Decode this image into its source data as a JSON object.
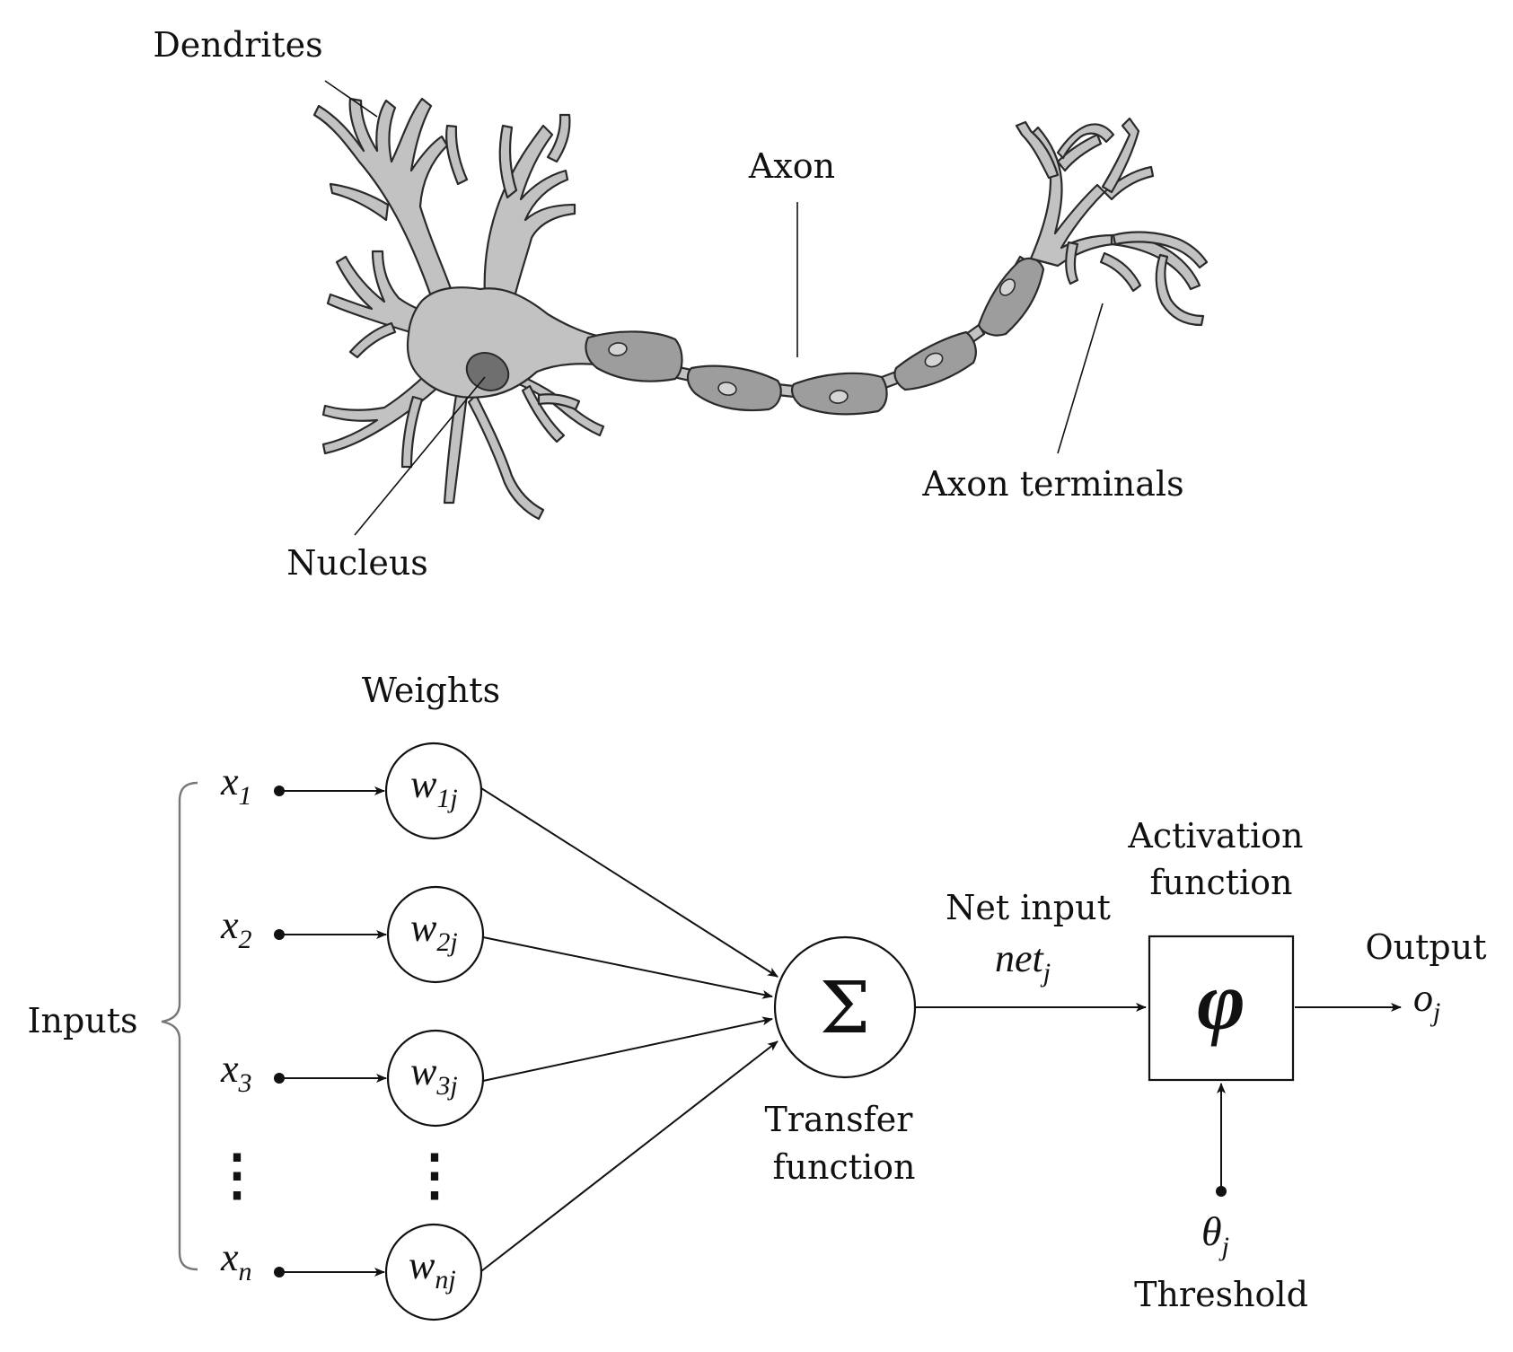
{
  "neuron": {
    "labels": {
      "dendrites": "Dendrites",
      "axon": "Axon",
      "nucleus": "Nucleus",
      "axon_terminals": "Axon terminals"
    }
  },
  "perceptron": {
    "weights_header": "Weights",
    "inputs_label": "Inputs",
    "inputs": [
      {
        "base": "x",
        "sub": "1"
      },
      {
        "base": "x",
        "sub": "2"
      },
      {
        "base": "x",
        "sub": "3"
      },
      {
        "base": "x",
        "sub": "n"
      }
    ],
    "weights": [
      {
        "base": "w",
        "sub": "1j"
      },
      {
        "base": "w",
        "sub": "2j"
      },
      {
        "base": "w",
        "sub": "3j"
      },
      {
        "base": "w",
        "sub": "nj"
      }
    ],
    "vertical_dots": "⋮",
    "sum_symbol": "Σ",
    "transfer_function": {
      "line1": "Transfer",
      "line2": "function"
    },
    "net_input": {
      "label": "Net input",
      "base": "net",
      "sub": "j"
    },
    "activation_function": {
      "line1": "Activation",
      "line2": "function",
      "symbol": "φ"
    },
    "output": {
      "label": "Output",
      "base": "o",
      "sub": "j"
    },
    "threshold": {
      "label": "Threshold",
      "base": "θ",
      "sub": "j"
    }
  },
  "colors": {
    "ink": "#111111",
    "neuron_body": "#c2c2c2",
    "myelin_sheath": "#9d9d9d",
    "nucleus": "#6f6f6f",
    "brace": "#777777"
  }
}
